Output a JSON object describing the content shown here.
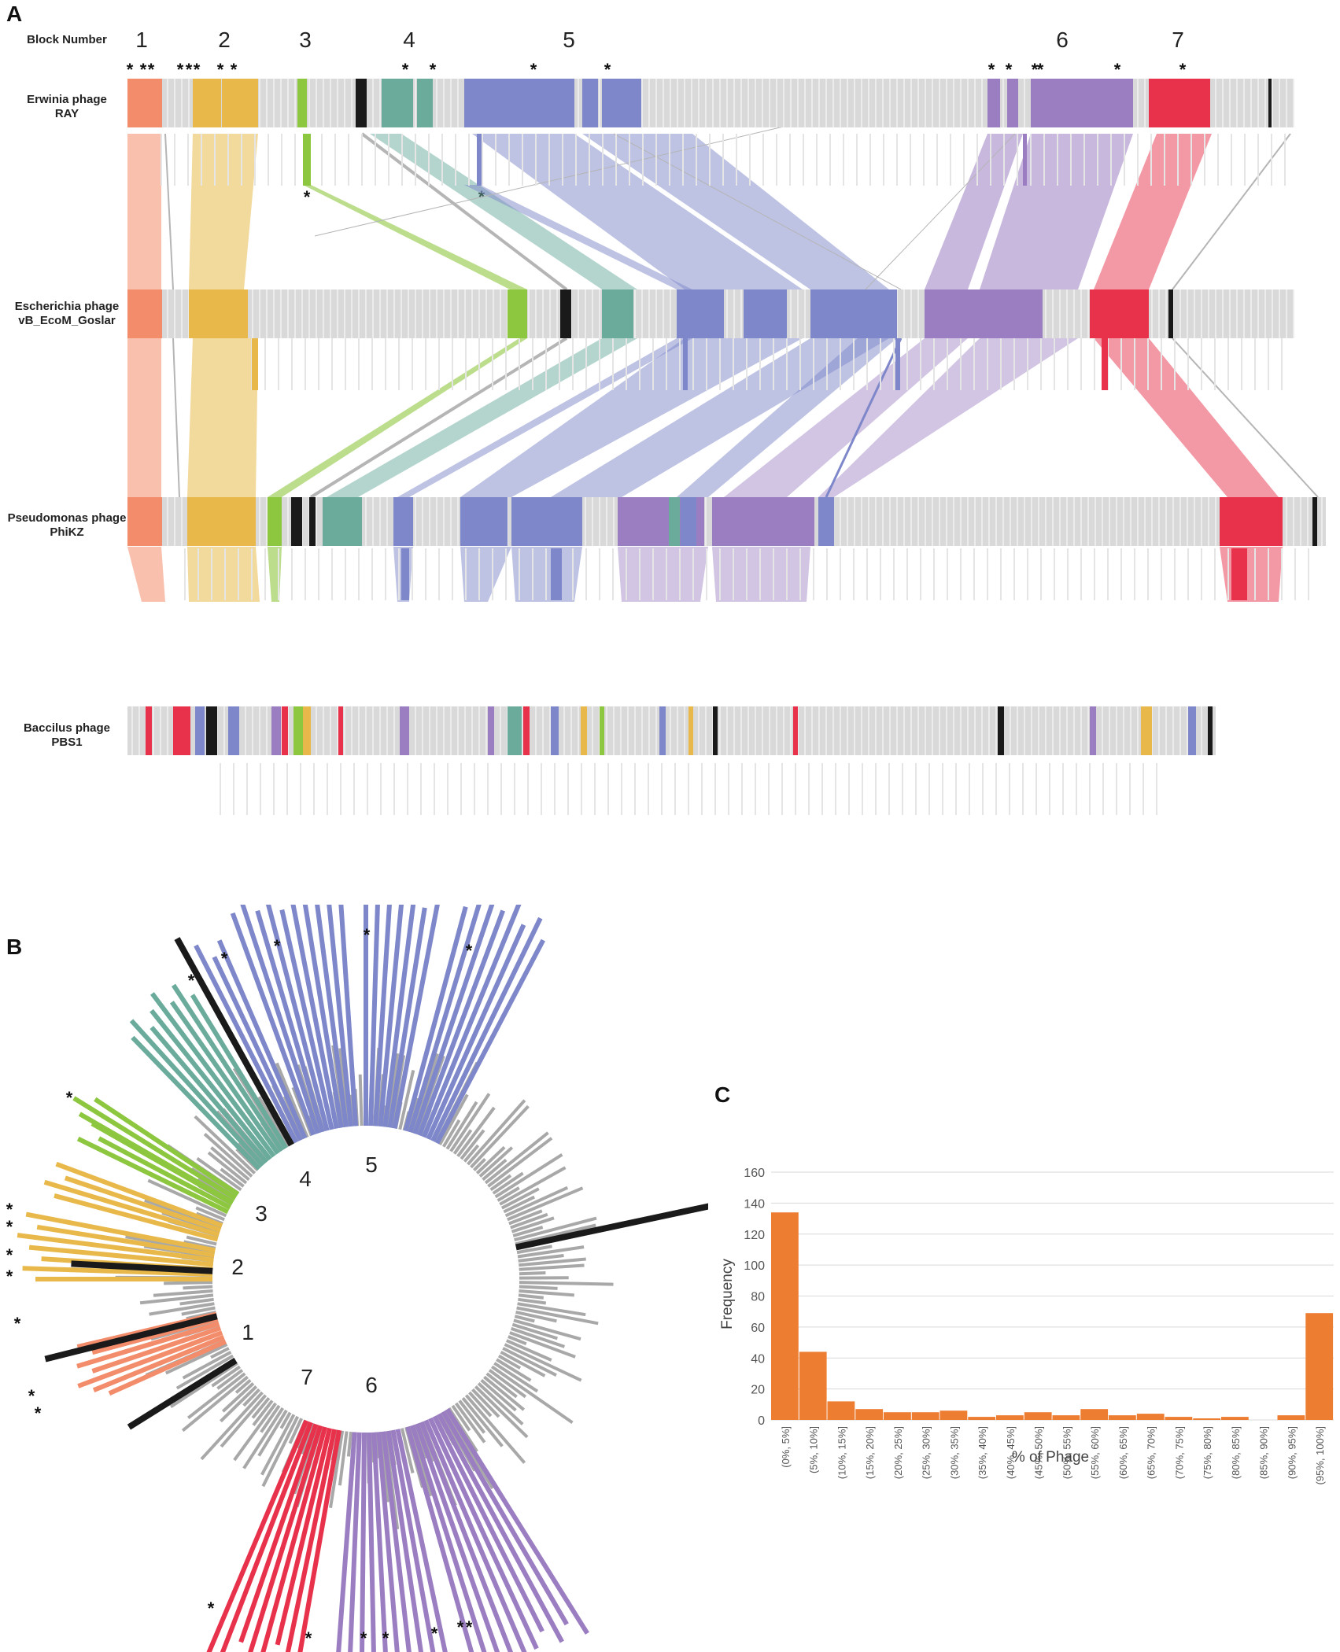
{
  "panels": {
    "a": "A",
    "b": "B",
    "c": "C"
  },
  "colors": {
    "block1": "#f28c6a",
    "block2": "#e8b94a",
    "block3": "#8dc63f",
    "block4": "#6aab9c",
    "block5": "#7d87c9",
    "block6": "#9b7ec1",
    "block7": "#e8314b",
    "black": "#1a1a1a",
    "gray": "#d9d9d9",
    "bar": "#ed7d31",
    "link_gray": "#b5b5b5"
  },
  "synteny": {
    "block_number_label": "Block Number",
    "block_numbers": [
      "1",
      "2",
      "3",
      "4",
      "5",
      "6",
      "7"
    ],
    "star": "*",
    "genomes": [
      {
        "line1": "Erwinia phage",
        "line2": "RAY"
      },
      {
        "line1": "Escherichia phage",
        "line2": "vB_EcoM_Goslar"
      },
      {
        "line1": "Pseudomonas phage",
        "line2": "PhiKZ"
      },
      {
        "line1": "Baccilus phage",
        "line2": "PBS1"
      }
    ]
  },
  "circular": {
    "block_labels": [
      "1",
      "2",
      "3",
      "4",
      "5",
      "6",
      "7"
    ],
    "star": "*"
  },
  "chart_data": {
    "type": "bar",
    "title": "",
    "xlabel": "% of Phage",
    "ylabel": "Frequency",
    "ylim": [
      0,
      160
    ],
    "yticks": [
      "0",
      "20",
      "40",
      "60",
      "80",
      "100",
      "120",
      "140",
      "160"
    ],
    "categories": [
      "(0%, 5%]",
      "(5%, 10%]",
      "(10%, 15%]",
      "(15%, 20%]",
      "(20%, 25%]",
      "(25%, 30%]",
      "(30%, 35%]",
      "(35%, 40%]",
      "(40%, 45%]",
      "(45%, 50%]",
      "(50%, 55%]",
      "(55%, 60%]",
      "(60%, 65%]",
      "(65%, 70%]",
      "(70%, 75%]",
      "(75%, 80%]",
      "(80%, 85%]",
      "(85%, 90%]",
      "(90%, 95%]",
      "(95%, 100%]"
    ],
    "values": [
      134,
      44,
      12,
      7,
      5,
      5,
      6,
      2,
      3,
      5,
      3,
      7,
      3,
      4,
      2,
      1,
      2,
      0,
      3,
      69
    ]
  }
}
